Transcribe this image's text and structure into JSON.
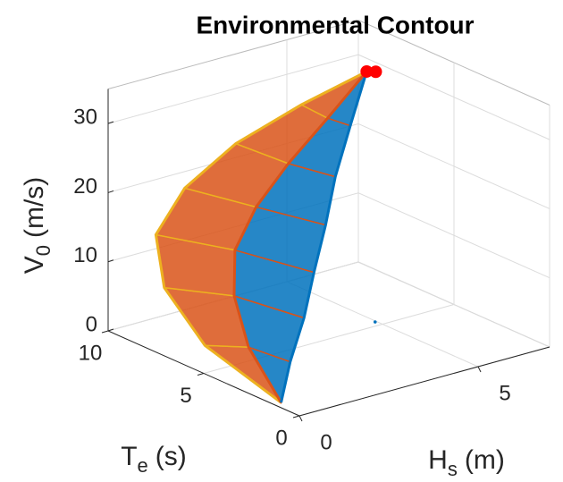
{
  "chart_data": {
    "type": "surface3d",
    "title": "Environmental Contour",
    "xlabel": {
      "main": "H",
      "sub": "s",
      "rest": "(m)"
    },
    "ylabel": {
      "main": "T",
      "sub": "e",
      "rest": "(s)"
    },
    "zlabel": {
      "main": "V",
      "sub": "0",
      "rest": "(m/s)"
    },
    "xlim": [
      0,
      7
    ],
    "ylim": [
      0,
      10
    ],
    "zlim": [
      0,
      35
    ],
    "xticks": [
      0,
      5
    ],
    "yticks": [
      0,
      5,
      10
    ],
    "zticks": [
      0,
      10,
      20,
      30
    ],
    "grid": true,
    "series": [
      {
        "color": "#edb120",
        "hs": [
          0.2,
          0.3,
          0.5,
          0.8,
          1.5,
          2.5,
          3.8,
          5.2
        ],
        "te": [
          1.33,
          5.5,
          8,
          9,
          8.8,
          8,
          7,
          6.2
        ],
        "v": [
          0,
          3,
          8,
          14,
          20,
          26,
          31,
          34.8
        ]
      },
      {
        "color": "#d95319",
        "hs": [
          0.2,
          0.45,
          0.85,
          1.3,
          2,
          2.9,
          4,
          5.2
        ],
        "te": [
          1.33,
          3.5,
          5,
          5.8,
          6,
          6,
          6,
          6.2
        ],
        "v": [
          0,
          5,
          10,
          15,
          20,
          25,
          30,
          34.8
        ]
      },
      {
        "color": "#0072bd",
        "hs": [
          0.2,
          0.6,
          1.2,
          1.8,
          2.5,
          3.2,
          4.1,
          5.2
        ],
        "te": [
          1.33,
          1.6,
          2,
          2.6,
          3.3,
          4.1,
          5,
          6.2
        ],
        "v": [
          0,
          5,
          10,
          15,
          20,
          25,
          30,
          34.8
        ]
      }
    ],
    "points": [
      {
        "color": "#ff0000",
        "hs": [
          5.2,
          5.4
        ],
        "te": [
          6.2,
          6.1
        ],
        "v": [
          34.8,
          34.6
        ]
      },
      {
        "color": "#0072bd",
        "hs": [
          4.96
        ],
        "te": [
          5.31
        ],
        "v": [
          0
        ]
      }
    ]
  }
}
